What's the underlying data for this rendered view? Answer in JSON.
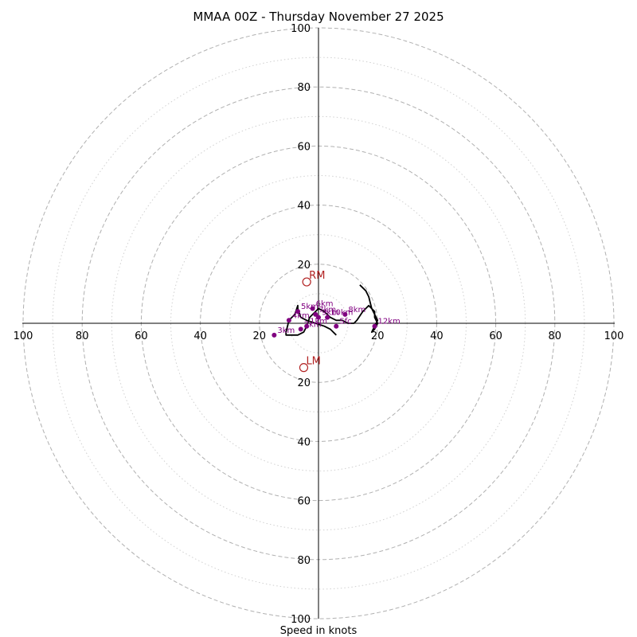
{
  "chart_data": {
    "type": "hodograph",
    "title": "MMAA 00Z - Thursday November 27 2025",
    "xlabel": "Speed in knots",
    "range": [
      -100,
      100
    ],
    "ring_values_dashed": [
      20,
      40,
      60,
      80,
      100
    ],
    "ring_values_dotted": [
      10,
      30,
      50,
      70,
      90
    ],
    "ticks": {
      "x_left": [
        "100",
        "80",
        "60",
        "40",
        "20"
      ],
      "x_right": [
        "20",
        "40",
        "60",
        "80",
        "100"
      ],
      "y_top": [
        "100",
        "80",
        "60",
        "40",
        "20"
      ],
      "y_bottom": [
        "20",
        "40",
        "60",
        "80",
        "100"
      ]
    },
    "trace_uv": [
      [
        6,
        -4
      ],
      [
        4,
        -2
      ],
      [
        2,
        -1
      ],
      [
        -1,
        0
      ],
      [
        -4,
        1
      ],
      [
        -6,
        2
      ],
      [
        -7,
        5
      ],
      [
        -7,
        6
      ],
      [
        -8,
        3
      ],
      [
        -10,
        1
      ],
      [
        -11,
        -3
      ],
      [
        -11,
        -4
      ],
      [
        -9,
        -4
      ],
      [
        -7,
        -4
      ],
      [
        -5,
        -3
      ],
      [
        -4,
        -1
      ],
      [
        -3,
        2
      ],
      [
        -2,
        3
      ],
      [
        -1,
        4
      ],
      [
        0,
        5
      ],
      [
        2,
        4
      ],
      [
        4,
        2
      ],
      [
        6,
        1
      ],
      [
        8,
        1
      ],
      [
        10,
        0
      ],
      [
        12,
        0
      ],
      [
        13,
        1
      ],
      [
        15,
        4
      ],
      [
        17,
        6
      ],
      [
        19,
        4
      ],
      [
        19,
        2
      ],
      [
        20,
        0
      ],
      [
        19,
        -2
      ],
      [
        18,
        -3
      ],
      [
        20,
        1
      ],
      [
        18,
        5
      ],
      [
        17,
        9
      ],
      [
        16,
        11
      ],
      [
        14,
        13
      ]
    ],
    "height_points": [
      {
        "label": "Sfc",
        "u": 6,
        "v": -1
      },
      {
        "label": "1km",
        "u": -4,
        "v": -1
      },
      {
        "label": "2km",
        "u": -6,
        "v": -2
      },
      {
        "label": "3km",
        "u": -15,
        "v": -4
      },
      {
        "label": "4km",
        "u": -10,
        "v": 1
      },
      {
        "label": "5km",
        "u": -7,
        "v": 4
      },
      {
        "label": "6km",
        "u": -2,
        "v": 5
      },
      {
        "label": "7km",
        "u": -1,
        "v": 3
      },
      {
        "label": "8km",
        "u": 9,
        "v": 3
      },
      {
        "label": "12km",
        "u": 19,
        "v": -1
      },
      {
        "label": "10km",
        "u": 3,
        "v": 2
      },
      {
        "label": "9km",
        "u": 0,
        "v": 2
      }
    ],
    "storm_motions": [
      {
        "label": "RM",
        "u": -4,
        "v": 14
      },
      {
        "label": "LM",
        "u": -5,
        "v": -15
      }
    ],
    "colors": {
      "trace": "#000000",
      "height_points": "#800080",
      "storm_motion": "#b22222",
      "grid": "#b0b0b0",
      "axis": "#000000"
    }
  }
}
